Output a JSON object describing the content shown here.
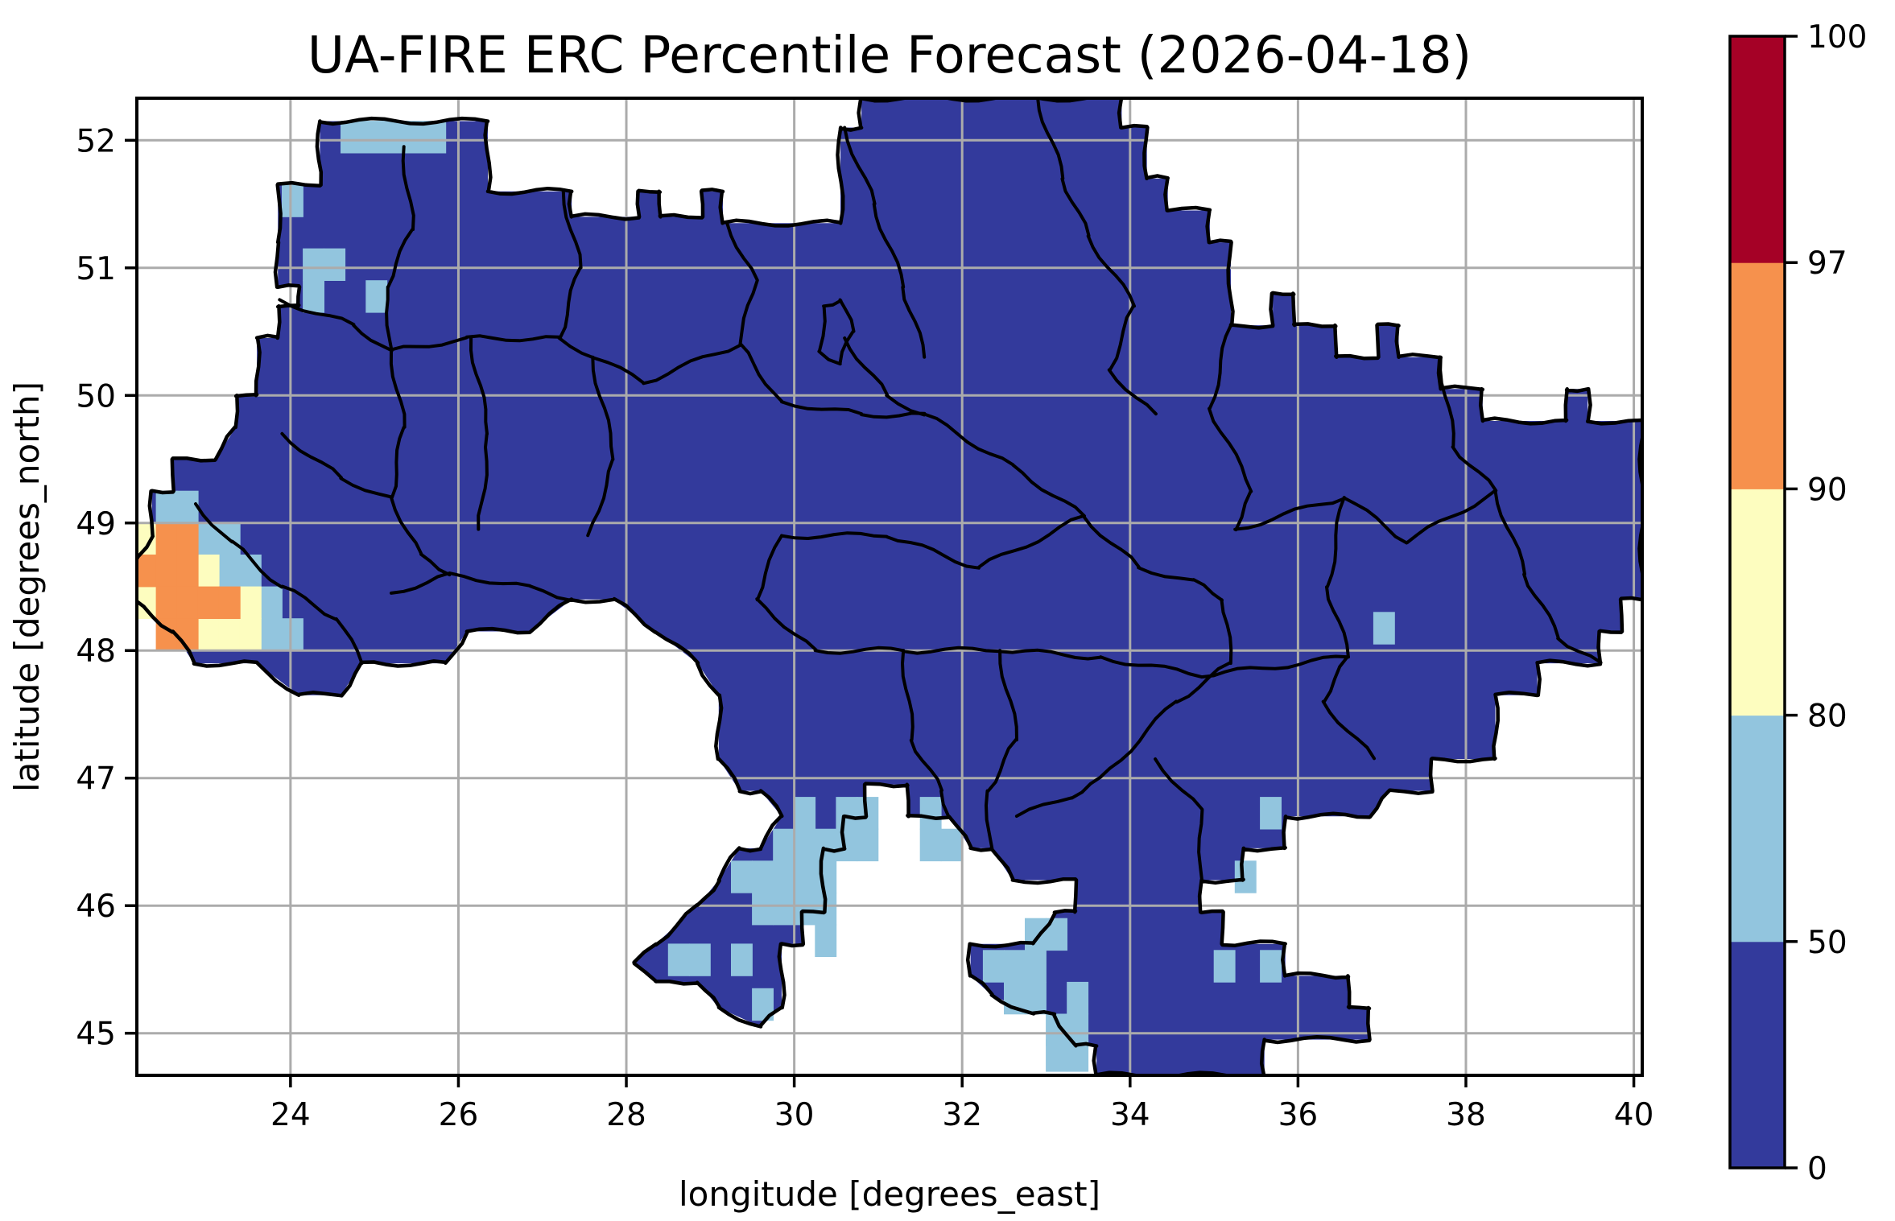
{
  "chart_data": {
    "type": "heatmap",
    "title": "UA-FIRE ERC Percentile Forecast (2026-04-18)",
    "xlabel": "longitude [degrees_east]",
    "ylabel": "latitude [degrees_north]",
    "xlim": [
      22.17,
      40.1
    ],
    "ylim": [
      44.67,
      52.33
    ],
    "x_ticks": [
      24,
      26,
      28,
      30,
      32,
      34,
      36,
      38,
      40
    ],
    "y_ticks": [
      45,
      46,
      47,
      48,
      49,
      50,
      51,
      52
    ],
    "grid": true,
    "cell_size_deg": 0.25,
    "colorbar": {
      "position": "right",
      "boundaries": [
        0,
        50,
        80,
        90,
        97,
        100
      ],
      "tick_labels": [
        "0",
        "50",
        "80",
        "90",
        "97",
        "100"
      ],
      "segment_colors_bottom_to_top": [
        "#333A9C",
        "#92C5DE",
        "#FDFDBF",
        "#F6914D",
        "#A50126"
      ]
    },
    "colors": {
      "band_0_50": "#333A9C",
      "band_50_80": "#92C5DE",
      "band_80_90": "#FDFDBF",
      "band_90_97": "#F6914D",
      "band_97_100": "#A50126",
      "grid": "#ABABAB",
      "boundary_lines": "#000000",
      "background": "#FFFFFF"
    },
    "cells": {
      "50-80": [
        [
          24.6,
          51.9
        ],
        [
          24.85,
          51.9
        ],
        [
          25.1,
          51.9
        ],
        [
          25.35,
          51.9
        ],
        [
          25.6,
          51.9
        ],
        [
          23.9,
          51.4
        ],
        [
          24.15,
          50.9
        ],
        [
          24.4,
          50.9
        ],
        [
          24.15,
          50.65
        ],
        [
          24.9,
          50.65
        ],
        [
          22.4,
          49.0
        ],
        [
          22.65,
          49.0
        ],
        [
          22.9,
          48.75
        ],
        [
          23.15,
          48.75
        ],
        [
          23.15,
          48.5
        ],
        [
          23.4,
          48.5
        ],
        [
          23.65,
          48.25
        ],
        [
          23.65,
          48.0
        ],
        [
          23.9,
          48.0
        ],
        [
          30.0,
          46.6
        ],
        [
          30.5,
          46.6
        ],
        [
          30.75,
          46.6
        ],
        [
          31.5,
          46.6
        ],
        [
          29.75,
          46.35
        ],
        [
          30.0,
          46.35
        ],
        [
          30.25,
          46.35
        ],
        [
          30.5,
          46.35
        ],
        [
          30.75,
          46.35
        ],
        [
          31.5,
          46.35
        ],
        [
          31.75,
          46.35
        ],
        [
          29.25,
          46.1
        ],
        [
          29.5,
          46.1
        ],
        [
          29.75,
          46.1
        ],
        [
          30.0,
          46.1
        ],
        [
          30.25,
          46.1
        ],
        [
          29.5,
          45.85
        ],
        [
          29.75,
          45.85
        ],
        [
          30.0,
          45.85
        ],
        [
          30.25,
          45.85
        ],
        [
          30.25,
          45.6
        ],
        [
          28.5,
          45.45
        ],
        [
          28.75,
          45.45
        ],
        [
          29.25,
          45.45
        ],
        [
          29.5,
          45.1
        ],
        [
          32.75,
          45.65
        ],
        [
          33.0,
          45.65
        ],
        [
          32.25,
          45.4
        ],
        [
          32.5,
          45.4
        ],
        [
          32.75,
          45.4
        ],
        [
          32.5,
          45.15
        ],
        [
          32.75,
          45.15
        ],
        [
          33.25,
          45.15
        ],
        [
          33.0,
          44.9
        ],
        [
          33.25,
          44.9
        ],
        [
          33.0,
          44.7
        ],
        [
          33.25,
          44.7
        ],
        [
          35.0,
          45.4
        ],
        [
          35.55,
          45.4
        ],
        [
          35.25,
          46.1
        ],
        [
          35.55,
          46.6
        ],
        [
          36.9,
          48.05
        ]
      ],
      "80-90": [
        [
          22.15,
          48.75
        ],
        [
          22.15,
          48.25
        ],
        [
          22.9,
          48.5
        ],
        [
          23.4,
          48.25
        ],
        [
          22.9,
          48.0
        ],
        [
          23.15,
          48.0
        ],
        [
          23.4,
          48.0
        ]
      ],
      "90-97": [
        [
          22.15,
          48.5
        ],
        [
          22.4,
          48.75
        ],
        [
          22.65,
          48.75
        ],
        [
          22.4,
          48.5
        ],
        [
          22.65,
          48.5
        ],
        [
          22.4,
          48.25
        ],
        [
          22.65,
          48.25
        ],
        [
          22.9,
          48.25
        ],
        [
          23.15,
          48.25
        ],
        [
          22.4,
          48.0
        ],
        [
          22.65,
          48.0
        ]
      ],
      "97-100": []
    },
    "ukraine_outline": [
      [
        23.85,
        51.2
      ],
      [
        23.85,
        51.65
      ],
      [
        24.35,
        51.65
      ],
      [
        24.35,
        52.15
      ],
      [
        26.35,
        52.15
      ],
      [
        26.35,
        51.6
      ],
      [
        27.35,
        51.6
      ],
      [
        27.35,
        51.4
      ],
      [
        28.15,
        51.4
      ],
      [
        28.15,
        51.6
      ],
      [
        28.4,
        51.6
      ],
      [
        28.4,
        51.4
      ],
      [
        28.9,
        51.4
      ],
      [
        28.9,
        51.6
      ],
      [
        29.15,
        51.6
      ],
      [
        29.15,
        51.35
      ],
      [
        30.55,
        51.35
      ],
      [
        30.55,
        52.1
      ],
      [
        30.8,
        52.1
      ],
      [
        30.8,
        52.33
      ],
      [
        33.9,
        52.33
      ],
      [
        33.9,
        52.1
      ],
      [
        34.2,
        52.1
      ],
      [
        34.2,
        51.7
      ],
      [
        34.45,
        51.7
      ],
      [
        34.45,
        51.45
      ],
      [
        34.95,
        51.45
      ],
      [
        34.95,
        51.2
      ],
      [
        35.2,
        51.2
      ],
      [
        35.2,
        50.55
      ],
      [
        35.7,
        50.55
      ],
      [
        35.7,
        50.8
      ],
      [
        35.95,
        50.8
      ],
      [
        35.95,
        50.55
      ],
      [
        36.45,
        50.55
      ],
      [
        36.45,
        50.3
      ],
      [
        36.95,
        50.3
      ],
      [
        36.95,
        50.55
      ],
      [
        37.2,
        50.55
      ],
      [
        37.2,
        50.3
      ],
      [
        37.7,
        50.3
      ],
      [
        37.7,
        50.05
      ],
      [
        38.2,
        50.05
      ],
      [
        38.2,
        49.8
      ],
      [
        39.2,
        49.8
      ],
      [
        39.2,
        50.05
      ],
      [
        39.45,
        50.05
      ],
      [
        39.45,
        49.8
      ],
      [
        40.1,
        49.8
      ],
      [
        40.1,
        48.4
      ],
      [
        39.85,
        48.4
      ],
      [
        39.85,
        48.15
      ],
      [
        39.6,
        48.15
      ],
      [
        39.6,
        47.9
      ],
      [
        38.85,
        47.9
      ],
      [
        38.85,
        47.65
      ],
      [
        38.35,
        47.65
      ],
      [
        38.35,
        47.15
      ],
      [
        37.6,
        47.15
      ],
      [
        37.6,
        46.9
      ],
      [
        37.1,
        46.9
      ],
      [
        36.85,
        46.7
      ],
      [
        35.85,
        46.7
      ],
      [
        35.85,
        46.45
      ],
      [
        35.35,
        46.45
      ],
      [
        35.35,
        46.2
      ],
      [
        34.85,
        46.2
      ],
      [
        34.85,
        45.95
      ],
      [
        35.1,
        45.95
      ],
      [
        35.1,
        45.7
      ],
      [
        35.85,
        45.7
      ],
      [
        35.85,
        45.45
      ],
      [
        36.6,
        45.45
      ],
      [
        36.6,
        45.2
      ],
      [
        36.85,
        45.2
      ],
      [
        36.85,
        44.95
      ],
      [
        35.6,
        44.95
      ],
      [
        35.6,
        44.67
      ],
      [
        33.6,
        44.67
      ],
      [
        33.6,
        44.9
      ],
      [
        33.35,
        44.9
      ],
      [
        33.1,
        45.15
      ],
      [
        32.85,
        45.15
      ],
      [
        32.35,
        45.3
      ],
      [
        32.1,
        45.45
      ],
      [
        32.1,
        45.7
      ],
      [
        32.85,
        45.7
      ],
      [
        33.1,
        45.95
      ],
      [
        33.35,
        45.95
      ],
      [
        33.35,
        46.2
      ],
      [
        32.6,
        46.2
      ],
      [
        32.35,
        46.45
      ],
      [
        32.1,
        46.45
      ],
      [
        31.85,
        46.7
      ],
      [
        31.35,
        46.7
      ],
      [
        31.35,
        46.95
      ],
      [
        30.85,
        46.95
      ],
      [
        30.85,
        46.7
      ],
      [
        30.6,
        46.7
      ],
      [
        30.6,
        46.45
      ],
      [
        30.35,
        46.45
      ],
      [
        30.35,
        45.95
      ],
      [
        30.1,
        45.95
      ],
      [
        30.1,
        45.7
      ],
      [
        29.85,
        45.7
      ],
      [
        29.85,
        45.2
      ],
      [
        29.6,
        45.05
      ],
      [
        29.1,
        45.2
      ],
      [
        28.85,
        45.4
      ],
      [
        28.35,
        45.4
      ],
      [
        28.1,
        45.55
      ],
      [
        28.35,
        45.7
      ],
      [
        28.85,
        46.0
      ],
      [
        29.1,
        46.2
      ],
      [
        29.35,
        46.45
      ],
      [
        29.6,
        46.45
      ],
      [
        29.85,
        46.7
      ],
      [
        29.6,
        46.9
      ],
      [
        29.35,
        46.9
      ],
      [
        29.1,
        47.15
      ],
      [
        29.1,
        47.65
      ],
      [
        28.85,
        47.9
      ],
      [
        28.35,
        48.15
      ],
      [
        27.85,
        48.4
      ],
      [
        27.35,
        48.4
      ],
      [
        26.85,
        48.15
      ],
      [
        26.1,
        48.15
      ],
      [
        25.85,
        47.9
      ],
      [
        24.85,
        47.9
      ],
      [
        24.6,
        47.65
      ],
      [
        24.1,
        47.65
      ],
      [
        23.6,
        47.9
      ],
      [
        22.85,
        47.9
      ],
      [
        22.6,
        48.15
      ],
      [
        22.12,
        48.4
      ],
      [
        22.12,
        48.65
      ],
      [
        22.35,
        48.9
      ],
      [
        22.35,
        49.25
      ],
      [
        22.6,
        49.25
      ],
      [
        22.6,
        49.5
      ],
      [
        23.1,
        49.5
      ],
      [
        23.35,
        49.75
      ],
      [
        23.35,
        50.0
      ],
      [
        23.6,
        50.0
      ],
      [
        23.6,
        50.45
      ],
      [
        23.85,
        50.45
      ],
      [
        23.85,
        50.7
      ],
      [
        24.1,
        50.7
      ],
      [
        24.1,
        50.85
      ],
      [
        23.85,
        50.85
      ]
    ],
    "oblast_borders": [
      [
        [
          25.35,
          51.95
        ],
        [
          25.45,
          51.3
        ],
        [
          25.15,
          50.85
        ],
        [
          25.2,
          50.35
        ]
      ],
      [
        [
          27.25,
          51.6
        ],
        [
          27.45,
          51.0
        ],
        [
          27.2,
          50.45
        ]
      ],
      [
        [
          29.2,
          51.35
        ],
        [
          29.55,
          50.9
        ],
        [
          29.35,
          50.4
        ],
        [
          29.85,
          49.95
        ]
      ],
      [
        [
          30.6,
          52.1
        ],
        [
          30.95,
          51.5
        ],
        [
          31.3,
          50.85
        ],
        [
          31.55,
          50.3
        ]
      ],
      [
        [
          32.9,
          52.33
        ],
        [
          33.2,
          51.7
        ],
        [
          33.5,
          51.25
        ]
      ],
      [
        [
          23.87,
          50.75
        ],
        [
          24.75,
          50.55
        ],
        [
          25.2,
          50.35
        ],
        [
          26.1,
          50.45
        ],
        [
          27.2,
          50.45
        ]
      ],
      [
        [
          25.2,
          50.35
        ],
        [
          25.35,
          49.75
        ],
        [
          25.2,
          49.2
        ]
      ],
      [
        [
          26.15,
          50.45
        ],
        [
          26.35,
          49.7
        ],
        [
          26.25,
          48.95
        ]
      ],
      [
        [
          27.6,
          50.3
        ],
        [
          27.85,
          49.5
        ],
        [
          27.55,
          48.9
        ]
      ],
      [
        [
          27.2,
          50.45
        ],
        [
          28.2,
          50.1
        ],
        [
          29.35,
          50.4
        ]
      ],
      [
        [
          29.85,
          49.95
        ],
        [
          30.8,
          49.85
        ],
        [
          31.55,
          49.85
        ]
      ],
      [
        [
          30.6,
          50.45
        ],
        [
          31.1,
          50.0
        ],
        [
          31.55,
          49.85
        ],
        [
          32.6,
          49.45
        ],
        [
          33.45,
          49.05
        ],
        [
          34.1,
          48.65
        ],
        [
          34.75,
          48.55
        ],
        [
          35.1,
          48.4
        ],
        [
          35.2,
          47.9
        ],
        [
          34.55,
          47.6
        ],
        [
          33.65,
          47.0
        ],
        [
          33.3,
          46.85
        ],
        [
          32.65,
          46.7
        ]
      ],
      [
        [
          33.5,
          51.25
        ],
        [
          34.05,
          50.7
        ],
        [
          33.75,
          50.2
        ],
        [
          34.3,
          49.85
        ]
      ],
      [
        [
          35.2,
          50.55
        ],
        [
          34.95,
          49.9
        ],
        [
          35.45,
          49.25
        ],
        [
          35.25,
          48.95
        ]
      ],
      [
        [
          37.7,
          50.3
        ],
        [
          37.85,
          49.6
        ],
        [
          38.35,
          49.25
        ]
      ],
      [
        [
          35.25,
          48.95
        ],
        [
          36.55,
          49.2
        ],
        [
          37.3,
          48.85
        ],
        [
          38.35,
          49.25
        ]
      ],
      [
        [
          38.35,
          49.25
        ],
        [
          38.7,
          48.6
        ],
        [
          39.1,
          48.1
        ],
        [
          39.6,
          47.9
        ]
      ],
      [
        [
          36.55,
          49.2
        ],
        [
          36.35,
          48.5
        ],
        [
          36.6,
          47.95
        ],
        [
          36.3,
          47.6
        ]
      ],
      [
        [
          33.65,
          47.95
        ],
        [
          34.85,
          47.8
        ],
        [
          36.6,
          47.95
        ]
      ],
      [
        [
          36.3,
          47.6
        ],
        [
          36.9,
          47.15
        ]
      ],
      [
        [
          34.3,
          47.15
        ],
        [
          34.85,
          46.75
        ],
        [
          34.85,
          46.2
        ]
      ],
      [
        [
          32.45,
          48.0
        ],
        [
          32.65,
          47.3
        ],
        [
          32.3,
          46.9
        ],
        [
          32.35,
          46.45
        ]
      ],
      [
        [
          31.3,
          48.0
        ],
        [
          31.4,
          47.3
        ],
        [
          31.75,
          46.9
        ],
        [
          31.85,
          46.7
        ]
      ],
      [
        [
          29.85,
          48.9
        ],
        [
          31.1,
          48.9
        ],
        [
          32.2,
          48.65
        ],
        [
          33.45,
          49.05
        ]
      ],
      [
        [
          30.25,
          48.0
        ],
        [
          31.3,
          48.0
        ],
        [
          32.45,
          48.0
        ],
        [
          33.65,
          47.95
        ]
      ],
      [
        [
          29.85,
          48.9
        ],
        [
          29.55,
          48.4
        ],
        [
          30.25,
          48.0
        ]
      ],
      [
        [
          25.2,
          48.45
        ],
        [
          25.9,
          48.6
        ],
        [
          26.85,
          48.5
        ],
        [
          27.35,
          48.4
        ]
      ],
      [
        [
          23.9,
          49.7
        ],
        [
          24.6,
          49.35
        ],
        [
          25.2,
          49.2
        ]
      ],
      [
        [
          22.87,
          49.15
        ],
        [
          23.3,
          48.85
        ],
        [
          23.9,
          48.5
        ],
        [
          24.55,
          48.25
        ],
        [
          24.85,
          47.9
        ]
      ],
      [
        [
          25.2,
          49.2
        ],
        [
          25.55,
          48.75
        ],
        [
          25.9,
          48.6
        ]
      ],
      [
        [
          30.35,
          50.7
        ],
        [
          30.55,
          50.75
        ],
        [
          30.7,
          50.5
        ],
        [
          30.55,
          50.25
        ],
        [
          30.3,
          50.35
        ],
        [
          30.35,
          50.7
        ]
      ]
    ]
  }
}
